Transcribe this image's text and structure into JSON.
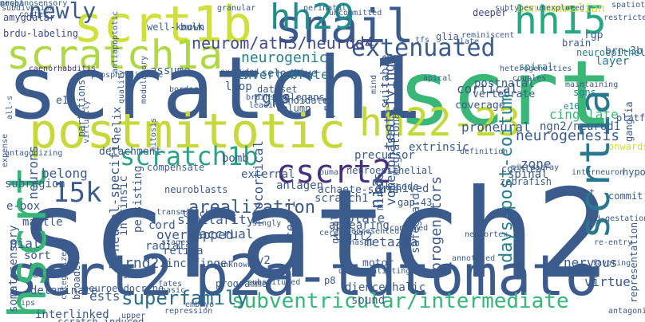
{
  "words": [
    {
      "text": "scratch2",
      "color": "#3b5b8c"
    },
    {
      "text": "scrt",
      "color": "#38b776"
    },
    {
      "text": "scratch1",
      "color": "#3b5b8c"
    },
    {
      "text": "scrt2",
      "color": "#3b5b8c"
    },
    {
      "text": "p2a-tdtomato",
      "color": "#3b5b8c"
    },
    {
      "text": "postmitotic",
      "color": "#c6d83a"
    },
    {
      "text": "snail",
      "color": "#3b5b8c"
    },
    {
      "text": "scrt1b",
      "color": "#cfe03a"
    },
    {
      "text": "scratch1a",
      "color": "#b0d843"
    },
    {
      "text": "hh29",
      "color": "#1f8d8c"
    },
    {
      "text": "hh15",
      "color": "#26a884"
    },
    {
      "text": "hh22-23",
      "color": "#c3d93a"
    },
    {
      "text": "scratch1b",
      "color": "#28a386"
    },
    {
      "text": "cscrt2",
      "color": "#462f7c"
    },
    {
      "text": "hscrt",
      "color": "#37b578"
    },
    {
      "text": "scrt1a",
      "color": "#2a788e"
    },
    {
      "text": "15k",
      "color": "#3b5b8c"
    },
    {
      "text": "extenuated",
      "color": "#3b5b8c"
    },
    {
      "text": "newly",
      "color": "#3b5b8c"
    },
    {
      "text": "subventricular/intermediate",
      "color": "#35b779"
    },
    {
      "text": "superfamily",
      "color": "#2a6e8e"
    },
    {
      "text": "neurom/ath3/neurod4",
      "color": "#3e4a89"
    },
    {
      "text": "neurogenic",
      "color": "#26818e"
    },
    {
      "text": "invertebrate",
      "color": "#2a788e"
    },
    {
      "text": "amygdalar",
      "color": "#3e4a89"
    },
    {
      "text": "brdu-labeling",
      "color": "#3e4a89"
    },
    {
      "text": "caenorhabditis",
      "color": "#462f7c"
    },
    {
      "text": "uncommitted",
      "color": "#3b5b8c"
    },
    {
      "text": "deeper",
      "color": "#3e4a89"
    },
    {
      "text": "non-mammalian",
      "color": "#cfe03a"
    },
    {
      "text": "rgp",
      "color": "#3b5b8c"
    },
    {
      "text": "brn-3b",
      "color": "#3b5b8c"
    },
    {
      "text": "brain",
      "color": "#3b5b8c"
    },
    {
      "text": "neuroepithelium",
      "color": "#26818e"
    },
    {
      "text": "layer",
      "color": "#2a788e"
    },
    {
      "text": "spiral",
      "color": "#2a788e"
    },
    {
      "text": "postnatal",
      "color": "#3b5b8c"
    },
    {
      "text": "vertebrate",
      "color": "#3b5b8c"
    },
    {
      "text": "cortical",
      "color": "#3b5b8c"
    },
    {
      "text": "coverage",
      "color": "#3b5b8c"
    },
    {
      "text": "cingulate",
      "color": "#38b776"
    },
    {
      "text": "sgns",
      "color": "#26818e"
    },
    {
      "text": "e16",
      "color": "#26818e"
    },
    {
      "text": "ngn2/neurod1",
      "color": "#3b5b8c"
    },
    {
      "text": "neurogenesis",
      "color": "#3b5b8c"
    },
    {
      "text": "proneural",
      "color": "#3b5b8c"
    },
    {
      "text": "extrinsic",
      "color": "#3b5b8c"
    },
    {
      "text": "onwards",
      "color": "#cfe03a"
    },
    {
      "text": "zone",
      "color": "#3b5b8c"
    },
    {
      "text": "spinal",
      "color": "#3b5b8c"
    },
    {
      "text": "days-post-coitum",
      "color": "#26818e"
    },
    {
      "text": "progenitors",
      "color": "#3b5b8c"
    },
    {
      "text": "safeguard",
      "color": "#3b5b8c"
    },
    {
      "text": "metazoa",
      "color": "#3b5b8c"
    },
    {
      "text": "motor",
      "color": "#3b5b8c"
    },
    {
      "text": "nervous",
      "color": "#3b5b8c"
    },
    {
      "text": "virtue",
      "color": "#3b5b8c"
    },
    {
      "text": "arealization",
      "color": "#3b5b8c"
    },
    {
      "text": "similarity",
      "color": "#3b5b8c"
    },
    {
      "text": "overlapped",
      "color": "#3b5b8c"
    },
    {
      "text": "radial",
      "color": "#3b5b8c"
    },
    {
      "text": "accrual",
      "color": "#3b5b8c"
    },
    {
      "text": "rnd2",
      "color": "#3b5b8c"
    },
    {
      "text": "zinc-finger",
      "color": "#3b5b8c"
    },
    {
      "text": "v2",
      "color": "#3b5b8c"
    },
    {
      "text": "ces-1",
      "color": "#3b5b8c"
    },
    {
      "text": "snail2",
      "color": "#3b5b8c"
    },
    {
      "text": "plate",
      "color": "#3b5b8c"
    },
    {
      "text": "appearing",
      "color": "#3b5b8c"
    },
    {
      "text": "nia",
      "color": "#3b5b8c"
    },
    {
      "text": "mir-25",
      "color": "#3b5b8c"
    },
    {
      "text": "achaete-scute",
      "color": "#3b5b8c"
    },
    {
      "text": "archived",
      "color": "#3b5b8c"
    },
    {
      "text": "anlagen",
      "color": "#3b5b8c"
    },
    {
      "text": "external",
      "color": "#3b5b8c"
    },
    {
      "text": "bomb",
      "color": "#3b5b8c"
    },
    {
      "text": "precursor",
      "color": "#3b5b8c"
    },
    {
      "text": "testifying",
      "color": "#3b5b8c"
    },
    {
      "text": "vomeronasal",
      "color": "#3b5b8c"
    },
    {
      "text": "migrational",
      "color": "#3b5b8c"
    },
    {
      "text": "p57",
      "color": "#3b5b8c"
    },
    {
      "text": "rgps",
      "color": "#3b5b8c"
    },
    {
      "text": "loop",
      "color": "#3b5b8c"
    },
    {
      "text": "sgn-selective",
      "color": "#3b5b8c"
    },
    {
      "text": "helix",
      "color": "#3b5b8c"
    },
    {
      "text": "e12",
      "color": "#3b5b8c"
    },
    {
      "text": "partitions",
      "color": "#3b5b8c"
    },
    {
      "text": "detachment",
      "color": "#3b5b8c"
    },
    {
      "text": "neurons",
      "color": "#3b5b8c"
    },
    {
      "text": "belong",
      "color": "#3b5b8c"
    },
    {
      "text": "subregion",
      "color": "#3b5b8c"
    },
    {
      "text": "e-box",
      "color": "#3b5b8c"
    },
    {
      "text": "mantle",
      "color": "#3b5b8c"
    },
    {
      "text": "pial",
      "color": "#3b5b8c"
    },
    {
      "text": "sort",
      "color": "#3b5b8c"
    },
    {
      "text": "e18",
      "color": "#3b5b8c"
    },
    {
      "text": "somatosensory",
      "color": "#3b5b8c"
    },
    {
      "text": "delaminate",
      "color": "#3b5b8c"
    },
    {
      "text": "ests",
      "color": "#3b5b8c"
    },
    {
      "text": "interlinked",
      "color": "#3b5b8c"
    },
    {
      "text": "scratch-induced",
      "color": "#3b5b8c"
    },
    {
      "text": "assume",
      "color": "#3b5b8c"
    },
    {
      "text": "intrinsic",
      "color": "#3b5b8c"
    },
    {
      "text": "neural-specific",
      "color": "#3b5b8c"
    },
    {
      "text": "persisting",
      "color": "#3b5b8c"
    },
    {
      "text": "retina",
      "color": "#3b5b8c"
    },
    {
      "text": "cord",
      "color": "#3b5b8c"
    },
    {
      "text": "thickness",
      "color": "#3b5b8c"
    },
    {
      "text": "scratch1",
      "color": "#3b5b8c"
    },
    {
      "text": "neocortical",
      "color": "#3b5b8c"
    },
    {
      "text": "diencephalic",
      "color": "#3b5b8c"
    },
    {
      "text": "p8",
      "color": "#3b5b8c"
    },
    {
      "text": "sound",
      "color": "#3b5b8c"
    },
    {
      "text": "gap-43",
      "color": "#3b5b8c"
    },
    {
      "text": "zebrafish",
      "color": "#3b5b8c"
    },
    {
      "text": "cochlear",
      "color": "#3b5b8c"
    },
    {
      "text": "strict",
      "color": "#3b5b8c"
    },
    {
      "text": "commit",
      "color": "#3b5b8c"
    },
    {
      "text": "platform",
      "color": "#3b5b8c"
    },
    {
      "text": "ganglia",
      "color": "#3b5b8c"
    },
    {
      "text": "subdivision",
      "color": "#3b5b8c"
    },
    {
      "text": "cortex",
      "color": "#3b5b8c"
    },
    {
      "text": "granular",
      "color": "#3b5b8c"
    },
    {
      "text": "perinatal",
      "color": "#3b5b8c"
    },
    {
      "text": "unexplored",
      "color": "#3b5b8c"
    },
    {
      "text": "spatiotemporal",
      "color": "#3b5b8c"
    },
    {
      "text": "restricted",
      "color": "#3b5b8c"
    },
    {
      "text": "reminiscent",
      "color": "#3b5b8c"
    },
    {
      "text": "glia",
      "color": "#3b5b8c"
    },
    {
      "text": "tfs",
      "color": "#3b5b8c"
    },
    {
      "text": "late",
      "color": "#3b5b8c"
    },
    {
      "text": "well-known",
      "color": "#3b5b8c"
    },
    {
      "text": "bulk",
      "color": "#3b5b8c"
    },
    {
      "text": "border",
      "color": "#3b5b8c"
    },
    {
      "text": "dataset",
      "color": "#3b5b8c"
    },
    {
      "text": "elegans",
      "color": "#3b5b8c"
    },
    {
      "text": "apical",
      "color": "#3b5b8c"
    },
    {
      "text": "excluded",
      "color": "#3b5b8c"
    },
    {
      "text": "maintaining",
      "color": "#3b5b8c"
    },
    {
      "text": "couples",
      "color": "#3b5b8c"
    },
    {
      "text": "brainstem",
      "color": "#3b5b8c"
    },
    {
      "text": "leading",
      "color": "#3b5b8c"
    },
    {
      "text": "candidate",
      "color": "#3b5b8c"
    },
    {
      "text": "column",
      "color": "#3b5b8c"
    },
    {
      "text": "suitable",
      "color": "#3b5b8c"
    },
    {
      "text": "mind",
      "color": "#3b5b8c"
    },
    {
      "text": "quality",
      "color": "#3b5b8c"
    },
    {
      "text": "modulatory",
      "color": "#3b5b8c"
    },
    {
      "text": "neuroepithelial",
      "color": "#3b5b8c"
    },
    {
      "text": "antagonizing",
      "color": "#3b5b8c"
    },
    {
      "text": "expense",
      "color": "#3b5b8c"
    },
    {
      "text": "compensate",
      "color": "#3b5b8c"
    },
    {
      "text": "neuroblasts",
      "color": "#3b5b8c"
    },
    {
      "text": "puma",
      "color": "#3b5b8c"
    },
    {
      "text": "placode",
      "color": "#3b5b8c"
    },
    {
      "text": "microarray",
      "color": "#3b5b8c"
    },
    {
      "text": "interneuron",
      "color": "#3b5b8c"
    },
    {
      "text": "definition",
      "color": "#3b5b8c"
    },
    {
      "text": "transmit",
      "color": "#3b5b8c"
    },
    {
      "text": "confined",
      "color": "#3b5b8c"
    },
    {
      "text": "neocortex",
      "color": "#3b5b8c"
    },
    {
      "text": "mid-gestational",
      "color": "#3b5b8c"
    },
    {
      "text": "re-entry",
      "color": "#3b5b8c"
    },
    {
      "text": "stages",
      "color": "#3b5b8c"
    },
    {
      "text": "nasal",
      "color": "#3b5b8c"
    },
    {
      "text": "link",
      "color": "#3b5b8c"
    },
    {
      "text": "differentiating",
      "color": "#3b5b8c"
    },
    {
      "text": "annotated",
      "color": "#3b5b8c"
    },
    {
      "text": "favoring",
      "color": "#3b5b8c"
    },
    {
      "text": "nuclei",
      "color": "#3b5b8c"
    },
    {
      "text": "fates",
      "color": "#3b5b8c"
    },
    {
      "text": "programme",
      "color": "#3b5b8c"
    },
    {
      "text": "neuroendocrine",
      "color": "#3b5b8c"
    },
    {
      "text": "basic",
      "color": "#3b5b8c"
    },
    {
      "text": "broader",
      "color": "#3b5b8c"
    },
    {
      "text": "upper",
      "color": "#3b5b8c"
    },
    {
      "text": "embryo",
      "color": "#3b5b8c"
    },
    {
      "text": "antagonistically",
      "color": "#3b5b8c"
    },
    {
      "text": "categorized",
      "color": "#3b5b8c"
    },
    {
      "text": "ips",
      "color": "#3b5b8c"
    },
    {
      "text": "cerebellar",
      "color": "#3b5b8c"
    },
    {
      "text": "glial",
      "color": "#3b5b8c"
    },
    {
      "text": "represented",
      "color": "#3b5b8c"
    },
    {
      "text": "singly",
      "color": "#3b5b8c"
    },
    {
      "text": "representation",
      "color": "#3b5b8c"
    },
    {
      "text": "hypothalamic",
      "color": "#3b5b8c"
    },
    {
      "text": "all-s",
      "color": "#3b5b8c"
    },
    {
      "text": "phospho-histone",
      "color": "#3b5b8c"
    },
    {
      "text": "virtually",
      "color": "#3b5b8c"
    },
    {
      "text": "antiapoptotic",
      "color": "#3b5b8c"
    },
    {
      "text": "mitosis",
      "color": "#3b5b8c"
    },
    {
      "text": "subtypes",
      "color": "#3b5b8c"
    },
    {
      "text": "heterogeneities",
      "color": "#3b5b8c"
    },
    {
      "text": "substituted",
      "color": "#3b5b8c"
    },
    {
      "text": "unknown",
      "color": "#3b5b8c"
    },
    {
      "text": "repression",
      "color": "#3b5b8c"
    },
    {
      "text": "prop",
      "color": "#3b5b8c"
    },
    {
      "text": "onset",
      "color": "#3b5b8c"
    },
    {
      "text": "mechanosensory",
      "color": "#3b5b8c"
    }
  ]
}
